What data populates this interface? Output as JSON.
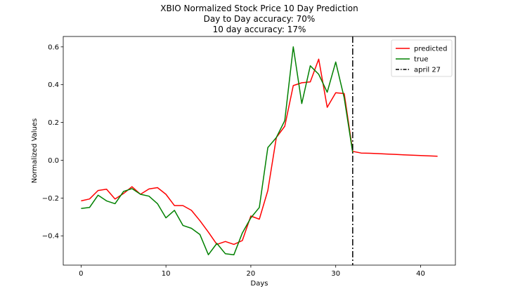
{
  "chart_data": {
    "type": "line",
    "title_lines": [
      "XBIO Normalized Stock Price 10 Day Prediction",
      "Day to Day accuracy: 70%",
      "10 day accuracy: 17%"
    ],
    "xlabel": "Days",
    "ylabel": "Normalized Values",
    "xlim": [
      -2.1,
      44.1
    ],
    "ylim": [
      -0.555,
      0.655
    ],
    "xticks": [
      0,
      10,
      20,
      30,
      40
    ],
    "yticks": [
      -0.4,
      -0.2,
      0.0,
      0.2,
      0.4,
      0.6
    ],
    "ytick_labels": [
      "−0.4",
      "−0.2",
      "0.0",
      "0.2",
      "0.4",
      "0.6"
    ],
    "legend_position": "top-right",
    "series": [
      {
        "name": "predicted",
        "color": "#ff0000",
        "style": "solid",
        "x": [
          0,
          1,
          2,
          3,
          4,
          5,
          6,
          7,
          8,
          9,
          10,
          11,
          12,
          13,
          14,
          15,
          16,
          17,
          18,
          19,
          20,
          21,
          22,
          23,
          24,
          25,
          26,
          27,
          28,
          29,
          30,
          31,
          32,
          33,
          34,
          35,
          36,
          37,
          38,
          39,
          40,
          41,
          42
        ],
        "y": [
          -0.215,
          -0.205,
          -0.16,
          -0.153,
          -0.205,
          -0.176,
          -0.14,
          -0.18,
          -0.152,
          -0.145,
          -0.18,
          -0.24,
          -0.24,
          -0.265,
          -0.32,
          -0.38,
          -0.445,
          -0.43,
          -0.445,
          -0.425,
          -0.295,
          -0.312,
          -0.16,
          0.12,
          0.18,
          0.395,
          0.41,
          0.415,
          0.535,
          0.28,
          0.357,
          0.353,
          0.047,
          0.038,
          0.037,
          0.035,
          0.033,
          0.031,
          0.029,
          0.027,
          0.025,
          0.023,
          0.021
        ]
      },
      {
        "name": "true",
        "color": "#008000",
        "style": "solid",
        "x": [
          0,
          1,
          2,
          3,
          4,
          5,
          6,
          7,
          8,
          9,
          10,
          11,
          12,
          13,
          14,
          15,
          16,
          17,
          18,
          19,
          20,
          21,
          22,
          23,
          24,
          25,
          26,
          27,
          28,
          29,
          30,
          31,
          32
        ],
        "y": [
          -0.255,
          -0.25,
          -0.185,
          -0.215,
          -0.23,
          -0.165,
          -0.15,
          -0.18,
          -0.19,
          -0.23,
          -0.305,
          -0.265,
          -0.345,
          -0.36,
          -0.393,
          -0.5,
          -0.44,
          -0.495,
          -0.5,
          -0.385,
          -0.305,
          -0.25,
          0.067,
          0.12,
          0.21,
          0.6,
          0.3,
          0.5,
          0.455,
          0.36,
          0.52,
          0.33,
          0.04
        ]
      }
    ],
    "vline": {
      "name": "april 27",
      "x": 32,
      "color": "#000000",
      "style": "dashdot"
    }
  }
}
